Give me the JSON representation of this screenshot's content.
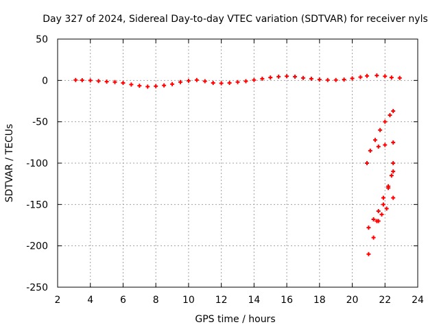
{
  "chart_data": {
    "type": "scatter",
    "title": "Day 327 of 2024, Sidereal Day-to-day VTEC variation (SDTVAR) for receiver nyls",
    "xlabel": "GPS time / hours",
    "ylabel": "SDTVAR / TECUs",
    "xlim": [
      2,
      24
    ],
    "ylim": [
      -250,
      50
    ],
    "xticks": [
      2,
      4,
      6,
      8,
      10,
      12,
      14,
      16,
      18,
      20,
      22,
      24
    ],
    "yticks": [
      50,
      0,
      -50,
      -100,
      -150,
      -200,
      -250
    ],
    "grid": true,
    "legend": "none",
    "marker": "plus",
    "color": "#ff0000",
    "series": [
      {
        "points": [
          [
            3.1,
            0.5
          ],
          [
            3.5,
            0.3
          ],
          [
            4.0,
            0.0
          ],
          [
            4.5,
            -0.8
          ],
          [
            5.0,
            -1.5
          ],
          [
            5.5,
            -2.0
          ],
          [
            6.0,
            -3.0
          ],
          [
            6.5,
            -5.0
          ],
          [
            7.0,
            -6.5
          ],
          [
            7.5,
            -7.5
          ],
          [
            8.0,
            -7.0
          ],
          [
            8.5,
            -6.0
          ],
          [
            9.0,
            -4.5
          ],
          [
            9.5,
            -2.0
          ],
          [
            10.0,
            -0.5
          ],
          [
            10.5,
            0.5
          ],
          [
            11.0,
            -1.0
          ],
          [
            11.5,
            -3.0
          ],
          [
            12.0,
            -3.5
          ],
          [
            12.5,
            -3.0
          ],
          [
            13.0,
            -2.0
          ],
          [
            13.5,
            -1.0
          ],
          [
            14.0,
            0.5
          ],
          [
            14.5,
            2.0
          ],
          [
            15.0,
            3.5
          ],
          [
            15.5,
            4.5
          ],
          [
            16.0,
            5.0
          ],
          [
            16.5,
            4.5
          ],
          [
            17.0,
            3.0
          ],
          [
            17.5,
            2.0
          ],
          [
            18.0,
            1.0
          ],
          [
            18.5,
            0.5
          ],
          [
            19.0,
            0.5
          ],
          [
            19.5,
            1.0
          ],
          [
            20.0,
            2.5
          ],
          [
            20.5,
            4.0
          ],
          [
            20.9,
            5.5
          ],
          [
            21.5,
            6.0
          ],
          [
            22.0,
            5.0
          ],
          [
            22.4,
            3.5
          ],
          [
            22.9,
            3.0
          ],
          [
            20.9,
            -100
          ],
          [
            21.1,
            -85
          ],
          [
            21.4,
            -72
          ],
          [
            21.7,
            -60
          ],
          [
            22.0,
            -50
          ],
          [
            22.3,
            -42
          ],
          [
            22.5,
            -37
          ],
          [
            21.6,
            -80
          ],
          [
            22.0,
            -78
          ],
          [
            22.5,
            -75
          ],
          [
            21.0,
            -178
          ],
          [
            21.3,
            -168
          ],
          [
            21.6,
            -158
          ],
          [
            21.9,
            -142
          ],
          [
            22.2,
            -128
          ],
          [
            22.4,
            -115
          ],
          [
            22.5,
            -100
          ],
          [
            21.0,
            -210
          ],
          [
            21.3,
            -190
          ],
          [
            21.6,
            -170
          ],
          [
            21.9,
            -150
          ],
          [
            22.2,
            -130
          ],
          [
            22.5,
            -110
          ],
          [
            21.5,
            -170
          ],
          [
            21.8,
            -162
          ],
          [
            22.1,
            -155
          ],
          [
            22.5,
            -142
          ]
        ]
      }
    ]
  }
}
